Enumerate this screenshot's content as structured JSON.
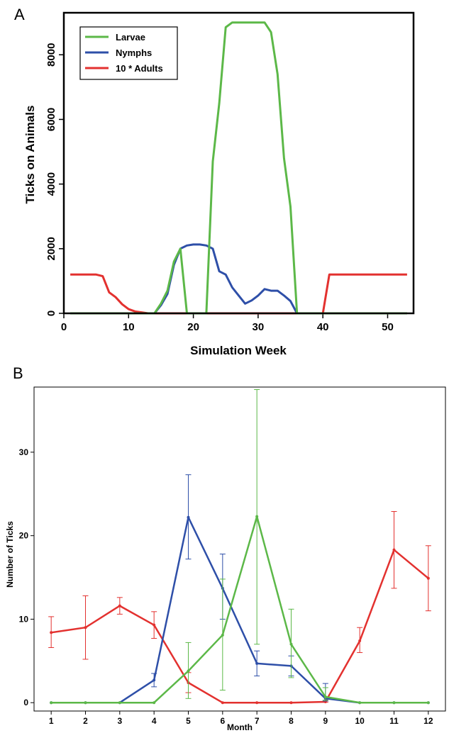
{
  "colors": {
    "larvae": "#5cb848",
    "nymphs": "#2e4fa8",
    "adults": "#e3312f"
  },
  "chart_data": [
    {
      "panel": "A",
      "type": "line",
      "xlabel": "Simulation Week",
      "ylabel": "Ticks on Animals",
      "xlim": [
        0,
        54
      ],
      "ylim": [
        0,
        9300
      ],
      "xticks": [
        0,
        10,
        20,
        30,
        40,
        50
      ],
      "yticks": [
        0,
        2000,
        4000,
        6000,
        8000
      ],
      "legend": {
        "placement": "top-left",
        "entries": [
          "Larvae",
          "Nymphs",
          "10 * Adults"
        ]
      },
      "series": [
        {
          "name": "Larvae",
          "color": "#5cb848",
          "x": [
            1,
            14,
            15,
            16,
            17,
            18,
            19,
            20,
            21,
            22,
            23,
            24,
            25,
            26,
            27,
            28,
            29,
            30,
            31,
            32,
            33,
            34,
            35,
            36,
            37,
            53
          ],
          "y": [
            0,
            0,
            300,
            700,
            1600,
            2000,
            0,
            0,
            0,
            0,
            4700,
            6500,
            8850,
            9000,
            9000,
            9000,
            9000,
            9000,
            9000,
            8700,
            7400,
            4800,
            3300,
            0,
            0,
            0
          ]
        },
        {
          "name": "Nymphs",
          "color": "#2e4fa8",
          "x": [
            1,
            14,
            15,
            16,
            17,
            18,
            19,
            20,
            21,
            22,
            23,
            24,
            25,
            26,
            27,
            28,
            29,
            30,
            31,
            32,
            33,
            34,
            35,
            36,
            53
          ],
          "y": [
            0,
            0,
            250,
            600,
            1500,
            2000,
            2100,
            2130,
            2130,
            2100,
            2000,
            1300,
            1200,
            800,
            550,
            300,
            400,
            550,
            750,
            700,
            700,
            550,
            380,
            0,
            0
          ]
        },
        {
          "name": "10 * Adults",
          "color": "#e3312f",
          "x": [
            1,
            5,
            6,
            7,
            8,
            9,
            10,
            11,
            12,
            13,
            14,
            40,
            41,
            53
          ],
          "y": [
            1200,
            1200,
            1150,
            650,
            500,
            280,
            130,
            60,
            30,
            0,
            0,
            0,
            1200,
            1200
          ]
        }
      ]
    },
    {
      "panel": "B",
      "type": "line",
      "xlabel": "Month",
      "ylabel": "Number of Ticks",
      "categories": [
        1,
        2,
        3,
        4,
        5,
        6,
        7,
        8,
        9,
        10,
        11,
        12
      ],
      "xlim": [
        0.5,
        12.5
      ],
      "ylim": [
        -1,
        37.8
      ],
      "yticks": [
        0,
        10,
        20,
        30
      ],
      "series": [
        {
          "name": "Larvae",
          "color": "#5cb848",
          "values": [
            0,
            0,
            0,
            0,
            3.8,
            8.1,
            22.3,
            7.0,
            0.7,
            0,
            0,
            0
          ],
          "err_low": [
            0,
            0,
            0,
            0,
            0.5,
            1.5,
            7.0,
            3.0,
            0.3,
            0,
            0,
            0
          ],
          "err_high": [
            0,
            0,
            0,
            0,
            7.2,
            14.8,
            37.5,
            11.2,
            1.8,
            0,
            0,
            0
          ]
        },
        {
          "name": "Nymphs",
          "color": "#2e4fa8",
          "values": [
            0,
            0,
            0,
            2.7,
            22.2,
            13.7,
            4.7,
            4.4,
            0.5,
            0,
            0,
            0
          ],
          "err_low": [
            0,
            0,
            0,
            1.9,
            17.2,
            10.0,
            3.2,
            3.2,
            0.2,
            0,
            0,
            0
          ],
          "err_high": [
            0,
            0,
            0,
            3.5,
            27.3,
            17.8,
            6.2,
            5.6,
            2.3,
            0,
            0,
            0
          ]
        },
        {
          "name": "Adults",
          "color": "#e3312f",
          "values": [
            8.4,
            9.0,
            11.6,
            9.3,
            2.4,
            0,
            0,
            0,
            0.1,
            7.4,
            18.3,
            14.9
          ],
          "err_low": [
            6.6,
            5.2,
            10.6,
            7.7,
            1.2,
            0,
            0,
            0,
            0.05,
            6.0,
            13.7,
            11.0
          ],
          "err_high": [
            10.3,
            12.8,
            12.6,
            10.9,
            3.6,
            0,
            0,
            0,
            0.2,
            9.0,
            22.9,
            18.8
          ]
        }
      ]
    }
  ]
}
